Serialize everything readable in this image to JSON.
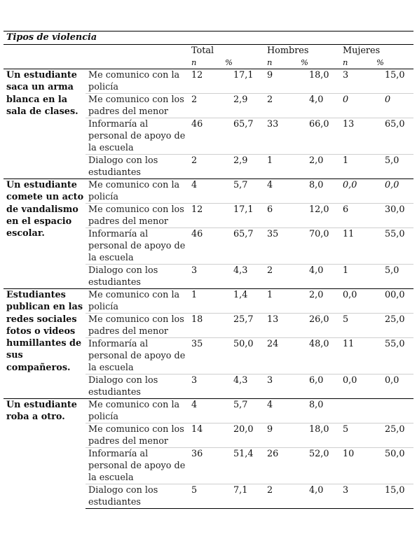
{
  "table": {
    "title": "Tipos de violencia",
    "groups": [
      "Total",
      "Hombres",
      "Mujeres"
    ],
    "subheaders": [
      "n",
      "%"
    ],
    "scenarios": [
      {
        "label": "Un estudiante saca un arma blanca en la sala de clases.",
        "rows": [
          {
            "option": "Me comunico con la policía",
            "vals": [
              "12",
              "17,1",
              "9",
              "18,0",
              "3",
              "15,0"
            ]
          },
          {
            "option": "Me comunico con los padres del menor",
            "vals": [
              "2",
              "2,9",
              "2",
              "4,0",
              "0",
              "0"
            ],
            "italic_women": true
          },
          {
            "option": "Informaría al personal de apoyo de la escuela",
            "vals": [
              "46",
              "65,7",
              "33",
              "66,0",
              "13",
              "65,0"
            ]
          },
          {
            "option": "Dialogo con los estudiantes",
            "vals": [
              "2",
              "2,9",
              "1",
              "2,0",
              "1",
              "5,0"
            ]
          }
        ]
      },
      {
        "label": "Un estudiante comete un acto de vandalismo en el espacio escolar.",
        "rows": [
          {
            "option": "Me comunico con la policía",
            "vals": [
              "4",
              "5,7",
              "4",
              "8,0",
              "0,0",
              "0,0"
            ],
            "italic_women": true
          },
          {
            "option": "Me comunico con los padres del menor",
            "vals": [
              "12",
              "17,1",
              "6",
              "12,0",
              "6",
              "30,0"
            ]
          },
          {
            "option": "Informaría al personal de apoyo de la escuela",
            "vals": [
              "46",
              "65,7",
              "35",
              "70,0",
              "11",
              "55,0"
            ]
          },
          {
            "option": "Dialogo con los estudiantes",
            "vals": [
              "3",
              "4,3",
              "2",
              "4,0",
              "1",
              "5,0"
            ]
          }
        ]
      },
      {
        "label": "Estudiantes publican en las redes sociales fotos o videos humillantes de sus compañeros.",
        "rows": [
          {
            "option": "Me comunico con la policía",
            "vals": [
              "1",
              "1,4",
              "1",
              "2,0",
              "0,0",
              "00,0"
            ]
          },
          {
            "option": "Me comunico con los padres del menor",
            "vals": [
              "18",
              "25,7",
              "13",
              "26,0",
              "5",
              "25,0"
            ]
          },
          {
            "option": "Informaría al personal de apoyo de la escuela",
            "vals": [
              "35",
              "50,0",
              "24",
              "48,0",
              "11",
              "55,0"
            ]
          },
          {
            "option": "Dialogo con los estudiantes",
            "vals": [
              "3",
              "4,3",
              "3",
              "6,0",
              "0,0",
              "0,0"
            ]
          }
        ]
      },
      {
        "label": "Un estudiante roba a otro.",
        "rows": [
          {
            "option": "Me comunico con la policía",
            "vals": [
              "4",
              "5,7",
              "4",
              "8,0",
              "",
              ""
            ]
          },
          {
            "option": "Me comunico con los padres del menor",
            "vals": [
              "14",
              "20,0",
              "9",
              "18,0",
              "5",
              "25,0"
            ]
          },
          {
            "option": "Informaría al personal de apoyo de la escuela",
            "vals": [
              "36",
              "51,4",
              "26",
              "52,0",
              "10",
              "50,0"
            ]
          },
          {
            "option": "Dialogo con los estudiantes",
            "vals": [
              "5",
              "7,1",
              "2",
              "4,0",
              "3",
              "15,0"
            ]
          }
        ]
      }
    ]
  }
}
